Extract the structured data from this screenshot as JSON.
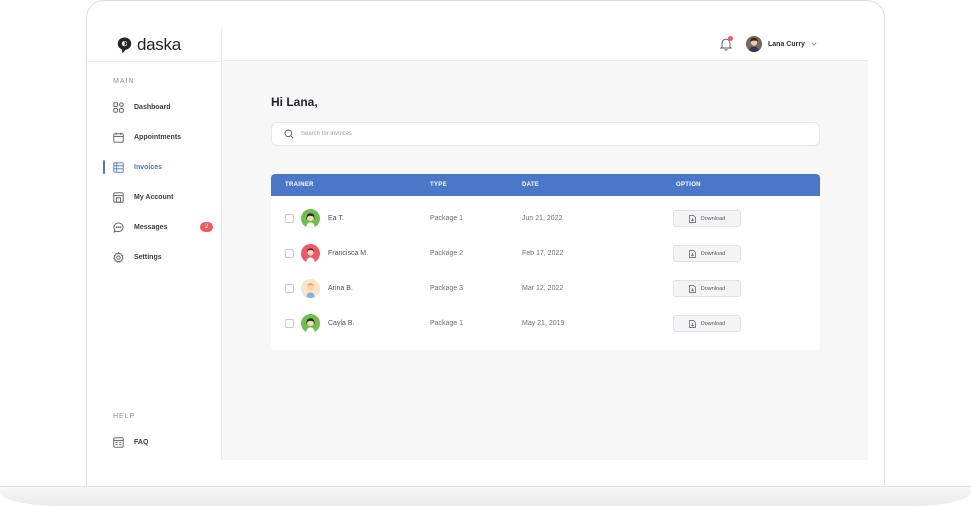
{
  "brand": {
    "name": "daska"
  },
  "sidebar": {
    "main_label": "MAIN",
    "help_label": "HELP",
    "items": [
      {
        "label": "Dashboard",
        "icon": "grid-icon",
        "active": false
      },
      {
        "label": "Appointments",
        "icon": "calendar-icon",
        "active": false
      },
      {
        "label": "Invoices",
        "icon": "invoice-icon",
        "active": true
      },
      {
        "label": "My Account",
        "icon": "account-icon",
        "active": false
      },
      {
        "label": "Messages",
        "icon": "message-icon",
        "active": false,
        "badge": "2"
      },
      {
        "label": "Settings",
        "icon": "gear-icon",
        "active": false
      }
    ],
    "help_items": [
      {
        "label": "FAQ",
        "icon": "faq-icon"
      }
    ]
  },
  "header": {
    "user_name": "Lana Curry",
    "notification_icon": "bell-icon"
  },
  "main": {
    "greeting": "Hi Lana,",
    "search": {
      "placeholder": "Search for invoices",
      "value": ""
    }
  },
  "table": {
    "columns": [
      "TRAINER",
      "TYPE",
      "DATE",
      "OPTION"
    ],
    "rows": [
      {
        "trainer": "Ea T.",
        "type": "Package 1",
        "date": "Jun 21, 2022",
        "option": "Download",
        "avatar_color": "#6fbf4a"
      },
      {
        "trainer": "Francisca M.",
        "type": "Package 2",
        "date": "Feb 17, 2022",
        "option": "Download",
        "avatar_color": "#ec5a67"
      },
      {
        "trainer": "Arina B.",
        "type": "Package 3",
        "date": "Mar 12, 2022",
        "option": "Download",
        "avatar_color": "#fde3c8"
      },
      {
        "trainer": "Cayla B.",
        "type": "Package 1",
        "date": "May 21, 2019",
        "option": "Download",
        "avatar_color": "#6fbf4a"
      }
    ]
  },
  "colors": {
    "accent": "#4a77c7",
    "badge": "#ef5b61",
    "background": "#f7f7f8"
  }
}
